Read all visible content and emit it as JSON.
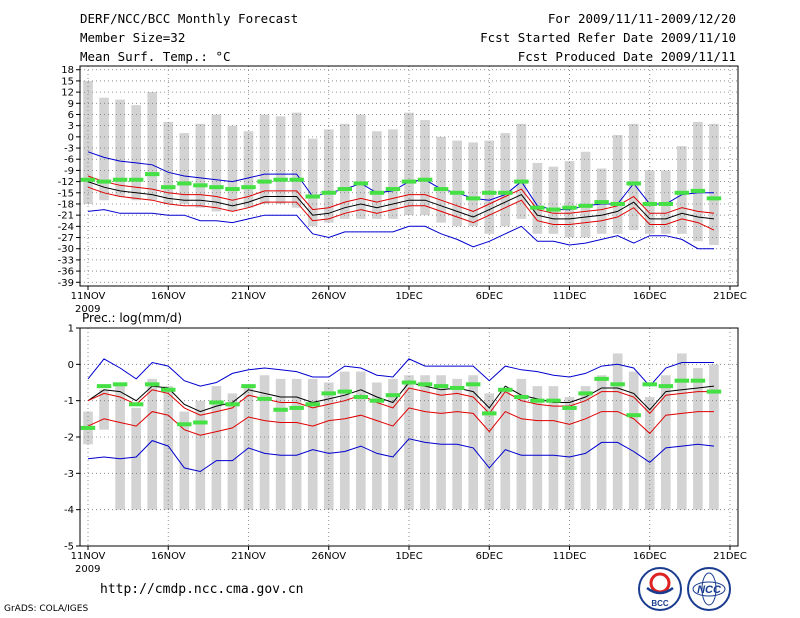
{
  "header": {
    "title": "DERF/NCC/BCC Monthly Forecast",
    "member_size": "Member Size=32",
    "variable": "Mean Surf. Temp.: °C",
    "period": "For 2009/11/11-2009/12/20",
    "started": "Fcst Started Refer Date 2009/11/10",
    "produced": "Fcst Produced Date 2009/11/11"
  },
  "footer": {
    "url": "http://cmdp.ncc.cma.gov.cn",
    "grads": "GrADS: COLA/IGES",
    "logo_left": "BCC",
    "logo_right": "NCC"
  },
  "colors": {
    "bar": "#d3d3d3",
    "marker": "#44e044",
    "mean": "#000000",
    "inner": "#e00000",
    "outer": "#0000d0"
  },
  "chart_data": [
    {
      "type": "line",
      "title": "Mean Surf. Temp.: °C",
      "ylim": [
        -40,
        19
      ],
      "yticks": [
        18,
        15,
        12,
        9,
        6,
        3,
        0,
        -3,
        -6,
        -9,
        -12,
        -15,
        -18,
        -21,
        -24,
        -27,
        -30,
        -33,
        -36,
        -39
      ],
      "xlim": [
        0,
        40
      ],
      "xticks": [
        {
          "x": 0,
          "label": "11NOV",
          "sub": "2009"
        },
        {
          "x": 5,
          "label": "16NOV"
        },
        {
          "x": 10,
          "label": "21NOV"
        },
        {
          "x": 15,
          "label": "26NOV"
        },
        {
          "x": 20,
          "label": "1DEC"
        },
        {
          "x": 25,
          "label": "6DEC"
        },
        {
          "x": 30,
          "label": "11DEC"
        },
        {
          "x": 35,
          "label": "16DEC"
        },
        {
          "x": 40,
          "label": "21DEC"
        }
      ],
      "bars_top": [
        15,
        10.5,
        10,
        8.5,
        12,
        4,
        1,
        3.5,
        6,
        3,
        1.5,
        6,
        5.5,
        6.5,
        -0.5,
        2,
        3.5,
        6,
        1.5,
        2,
        6.5,
        4.5,
        0,
        -1,
        -1.5,
        -1,
        1,
        3.5,
        -7,
        -8,
        -6.5,
        -4,
        -8.5,
        0.5,
        3.5,
        -9,
        -9,
        -2.5,
        4,
        3.5
      ],
      "bars_bottom": [
        -18,
        -17,
        -16,
        -17,
        -17,
        -18,
        -18,
        -19,
        -20,
        -20,
        -19,
        -18,
        -18,
        -19,
        -24,
        -23,
        -22,
        -22,
        -22,
        -22,
        -21,
        -21,
        -23,
        -24,
        -24,
        -26,
        -24,
        -22,
        -26,
        -26,
        -27,
        -27,
        -26,
        -26,
        -25,
        -26,
        -26,
        -26,
        -28,
        -29
      ],
      "markers": [
        -11.5,
        -12,
        -11.5,
        -11.5,
        -10,
        -13.5,
        -12.5,
        -13,
        -13.5,
        -14,
        -13.5,
        -12,
        -11.5,
        -11.5,
        -16,
        -15,
        -14,
        -12.5,
        -15,
        -14,
        -12,
        -11.5,
        -14,
        -15,
        -16.5,
        -15,
        -15,
        -12,
        -19,
        -19.5,
        -19,
        -18.5,
        -17.5,
        -18,
        -12.5,
        -18,
        -18,
        -15,
        -14.5,
        -16.5
      ],
      "series": [
        {
          "name": "mean",
          "values": [
            -12,
            -13.5,
            -14.5,
            -15,
            -15.5,
            -16.5,
            -17,
            -17,
            -17.5,
            -18.5,
            -17.5,
            -16,
            -16,
            -16,
            -21,
            -20.5,
            -19,
            -18,
            -19,
            -18,
            -17,
            -17,
            -18.5,
            -20,
            -21.5,
            -19.5,
            -17.5,
            -15.5,
            -21,
            -22,
            -22,
            -21.5,
            -21,
            -20,
            -17.5,
            -22,
            -22,
            -20.5,
            -21.5,
            -22
          ]
        },
        {
          "name": "inner-upper",
          "values": [
            -10.5,
            -12,
            -13,
            -13.5,
            -14,
            -15,
            -15.5,
            -15.5,
            -16,
            -17,
            -16,
            -14.5,
            -14.5,
            -14.5,
            -19.5,
            -19,
            -17.5,
            -16.5,
            -17.5,
            -16.5,
            -15.5,
            -15.5,
            -17,
            -18.5,
            -20,
            -18,
            -16,
            -14,
            -19.5,
            -20.5,
            -20.5,
            -20,
            -19.5,
            -18.5,
            -16,
            -20.5,
            -20.5,
            -19,
            -20,
            -20.5
          ]
        },
        {
          "name": "inner-lower",
          "values": [
            -13.5,
            -15,
            -16,
            -16.5,
            -17,
            -18,
            -18.5,
            -18.5,
            -19,
            -20,
            -19,
            -17.5,
            -17.5,
            -17.5,
            -22.5,
            -22,
            -20.5,
            -19.5,
            -20.5,
            -19.5,
            -18.5,
            -18.5,
            -20,
            -21.5,
            -23,
            -21,
            -19,
            -17,
            -22.5,
            -23.5,
            -23.5,
            -23,
            -22.5,
            -21.5,
            -19,
            -23.5,
            -23.5,
            -22,
            -23,
            -25
          ]
        },
        {
          "name": "outer-upper",
          "values": [
            -4,
            -5.5,
            -6.5,
            -7,
            -7.5,
            -9.5,
            -10.5,
            -11,
            -11.5,
            -12,
            -11,
            -10,
            -10,
            -10,
            -16,
            -15,
            -14,
            -12.5,
            -15,
            -14.5,
            -12,
            -11.5,
            -14,
            -15,
            -16.5,
            -17,
            -15.5,
            -12,
            -18.5,
            -19.5,
            -19.5,
            -18.5,
            -18,
            -18,
            -12.5,
            -18,
            -18,
            -15.5,
            -15,
            -15
          ]
        },
        {
          "name": "outer-lower",
          "values": [
            -20,
            -19.5,
            -20.5,
            -20.5,
            -20.5,
            -21,
            -21,
            -22.5,
            -22.5,
            -23,
            -22,
            -21,
            -21,
            -21,
            -26,
            -27,
            -25.5,
            -25.5,
            -25.5,
            -25.5,
            -24,
            -24,
            -26,
            -27.5,
            -29.5,
            -28,
            -26,
            -24,
            -28,
            -28,
            -29,
            -28.5,
            -27.5,
            -26.5,
            -28.5,
            -26.5,
            -26.5,
            -27.5,
            -30,
            -30
          ]
        }
      ]
    },
    {
      "type": "line",
      "title": "Prec.: log(mm/d)",
      "ylim": [
        -5,
        1
      ],
      "yticks": [
        1,
        0,
        -1,
        -2,
        -3,
        -4,
        -5
      ],
      "xlim": [
        0,
        40
      ],
      "xticks": [
        {
          "x": 0,
          "label": "11NOV",
          "sub": "2009"
        },
        {
          "x": 5,
          "label": "16NOV"
        },
        {
          "x": 10,
          "label": "21NOV"
        },
        {
          "x": 15,
          "label": "26NOV"
        },
        {
          "x": 20,
          "label": "1DEC"
        },
        {
          "x": 25,
          "label": "6DEC"
        },
        {
          "x": 30,
          "label": "11DEC"
        },
        {
          "x": 35,
          "label": "16DEC"
        },
        {
          "x": 40,
          "label": "21DEC"
        }
      ],
      "bars_top": [
        -1.3,
        -0.7,
        -0.5,
        -1.2,
        -0.4,
        -0.6,
        -1.3,
        -1,
        -0.6,
        -0.8,
        -0.6,
        -0.3,
        -0.4,
        -0.4,
        -0.4,
        -0.5,
        -0.2,
        -0.2,
        -0.5,
        -0.4,
        -0.3,
        -0.3,
        -0.3,
        -0.4,
        -0.3,
        -0.8,
        -0.7,
        -0.4,
        -0.6,
        -0.6,
        -0.9,
        -0.6,
        -0.3,
        0.3,
        -0.2,
        -0.9,
        -0.3,
        0.3,
        -0.1,
        0
      ],
      "bars_bottom": [
        -2.2,
        -1.8,
        -4,
        -4,
        -4,
        -4,
        -4,
        -4,
        -4,
        -4,
        -4,
        -4,
        -4,
        -4,
        -4,
        -4,
        -4,
        -4,
        -4,
        -4,
        -4,
        -4,
        -4,
        -4,
        -4,
        -4,
        -4,
        -4,
        -4,
        -4,
        -4,
        -4,
        -4,
        -4,
        -4,
        -4,
        -4,
        -4,
        -4,
        -4
      ],
      "markers": [
        -1.75,
        -0.6,
        -0.55,
        -1.1,
        -0.55,
        -0.7,
        -1.65,
        -1.6,
        -1.05,
        -1.1,
        -0.6,
        -0.95,
        -1.25,
        -1.2,
        -1.1,
        -0.8,
        -0.75,
        -0.9,
        -1,
        -0.85,
        -0.5,
        -0.55,
        -0.6,
        -0.65,
        -0.55,
        -1.35,
        -0.7,
        -0.9,
        -1,
        -1,
        -1.2,
        -0.8,
        -0.4,
        -0.55,
        -1.4,
        -0.55,
        -0.6,
        -0.45,
        -0.45,
        -0.75
      ],
      "series": [
        {
          "name": "mean",
          "values": [
            -1,
            -0.7,
            -0.75,
            -1,
            -0.6,
            -0.65,
            -1.1,
            -1.3,
            -1.15,
            -1.05,
            -0.7,
            -0.8,
            -0.9,
            -0.9,
            -1.05,
            -0.95,
            -0.85,
            -0.7,
            -0.9,
            -1.05,
            -0.5,
            -0.6,
            -0.7,
            -0.65,
            -0.75,
            -1.2,
            -0.6,
            -0.85,
            -0.95,
            -1.05,
            -1.05,
            -0.9,
            -0.65,
            -0.65,
            -0.8,
            -1.25,
            -0.75,
            -0.7,
            -0.65,
            -0.6
          ]
        },
        {
          "name": "inner-upper",
          "values": [
            -1,
            -0.8,
            -0.9,
            -1.1,
            -0.7,
            -0.8,
            -1.2,
            -1.4,
            -1.3,
            -1.2,
            -0.85,
            -0.95,
            -1.05,
            -1.05,
            -1.2,
            -1.1,
            -1,
            -0.85,
            -1.05,
            -1.2,
            -0.65,
            -0.75,
            -0.85,
            -0.8,
            -0.9,
            -1.35,
            -0.75,
            -1,
            -1.1,
            -1.15,
            -1.15,
            -1,
            -0.75,
            -0.75,
            -0.9,
            -1.35,
            -0.85,
            -0.8,
            -0.75,
            -0.75
          ]
        },
        {
          "name": "inner-lower",
          "values": [
            -1.7,
            -1.5,
            -1.6,
            -1.7,
            -1.3,
            -1.4,
            -1.8,
            -1.95,
            -1.85,
            -1.75,
            -1.45,
            -1.55,
            -1.6,
            -1.6,
            -1.7,
            -1.55,
            -1.5,
            -1.4,
            -1.55,
            -1.7,
            -1.2,
            -1.3,
            -1.35,
            -1.3,
            -1.35,
            -1.85,
            -1.3,
            -1.5,
            -1.55,
            -1.55,
            -1.65,
            -1.5,
            -1.3,
            -1.3,
            -1.5,
            -1.9,
            -1.4,
            -1.35,
            -1.3,
            -1.3
          ]
        },
        {
          "name": "outer-upper",
          "values": [
            -0.4,
            0.15,
            -0.1,
            -0.4,
            0.05,
            -0.05,
            -0.45,
            -0.6,
            -0.5,
            -0.25,
            -0.15,
            -0.1,
            -0.15,
            -0.2,
            -0.35,
            -0.35,
            -0.05,
            -0.1,
            -0.3,
            -0.35,
            0.15,
            -0.05,
            -0.05,
            -0.05,
            -0.05,
            -0.45,
            -0.05,
            -0.15,
            -0.2,
            -0.3,
            -0.35,
            -0.25,
            -0.05,
            0,
            -0.1,
            -0.6,
            -0.1,
            0.05,
            0.05,
            0.05
          ]
        },
        {
          "name": "outer-lower",
          "values": [
            -2.6,
            -2.55,
            -2.6,
            -2.55,
            -2.1,
            -2.25,
            -2.85,
            -2.95,
            -2.65,
            -2.65,
            -2.3,
            -2.45,
            -2.5,
            -2.5,
            -2.35,
            -2.45,
            -2.4,
            -2.25,
            -2.45,
            -2.55,
            -2.05,
            -2.15,
            -2.2,
            -2.2,
            -2.3,
            -2.85,
            -2.35,
            -2.5,
            -2.5,
            -2.5,
            -2.55,
            -2.45,
            -2.15,
            -2.15,
            -2.4,
            -2.7,
            -2.3,
            -2.25,
            -2.2,
            -2.25
          ]
        }
      ]
    }
  ]
}
